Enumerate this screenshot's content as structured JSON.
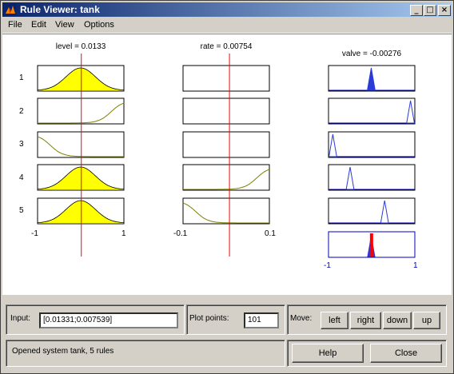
{
  "window": {
    "title": "Rule Viewer: tank"
  },
  "menu": [
    "File",
    "Edit",
    "View",
    "Options"
  ],
  "inputs": [
    {
      "name": "level",
      "value_text": "level = 0.0133",
      "value": 0.0133,
      "range": [
        -1,
        1
      ],
      "range_labels": [
        "-1",
        "1"
      ]
    },
    {
      "name": "rate",
      "value_text": "rate = 0.00754",
      "value": 0.00754,
      "range": [
        -0.1,
        0.1
      ],
      "range_labels": [
        "-0.1",
        "0.1"
      ]
    }
  ],
  "output": {
    "name": "valve",
    "value_text": "valve = -0.00276",
    "value": -0.00276,
    "range": [
      -1,
      1
    ],
    "range_labels": [
      "-1",
      "1"
    ]
  },
  "rules": [
    "1",
    "2",
    "3",
    "4",
    "5"
  ],
  "bottom": {
    "input_label": "Input:",
    "input_value": "[0.01331;0.007539]",
    "plot_points_label": "Plot points:",
    "plot_points_value": "101",
    "move_label": "Move:",
    "move_buttons": [
      "left",
      "right",
      "down",
      "up"
    ],
    "status": "Opened system tank, 5 rules",
    "help": "Help",
    "close": "Close"
  },
  "colors": {
    "fill_yellow": "#ffff00",
    "fill_blue": "#2b3bd9",
    "aggregate_red": "#ff0000",
    "index_line": "#ff0000",
    "output_border": "#0000c0"
  }
}
